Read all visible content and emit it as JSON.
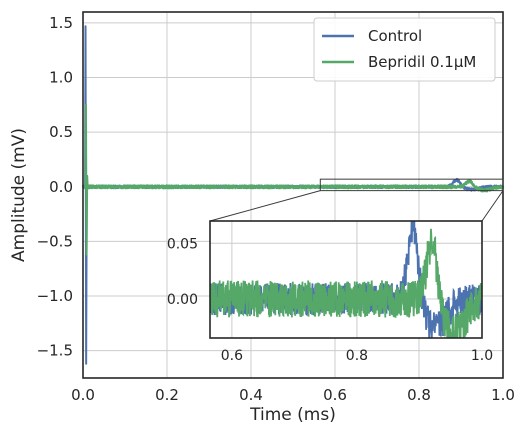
{
  "chart_data": {
    "type": "line",
    "title": "",
    "xlabel": "Time (ms)",
    "ylabel": "Amplitude (mV)",
    "xlim": [
      0.0,
      1.0
    ],
    "ylim": [
      -1.75,
      1.6
    ],
    "xticks": [
      0.0,
      0.2,
      0.4,
      0.6,
      0.8,
      1.0
    ],
    "xtick_labels": [
      "0.0",
      "0.2",
      "0.4",
      "0.6",
      "0.8",
      "1.0"
    ],
    "yticks": [
      -1.5,
      -1.0,
      -0.5,
      0.0,
      0.5,
      1.0,
      1.5
    ],
    "ytick_labels": [
      "−1.5",
      "−1.0",
      "−0.5",
      "0.0",
      "0.5",
      "1.0",
      "1.5"
    ],
    "grid": true,
    "legend_position": "top-right",
    "series": [
      {
        "name": "Control",
        "color": "#4c72b0",
        "spike": {
          "x": 0.006,
          "max": 1.47,
          "min": -1.62
        },
        "noise_amplitude": 0.012,
        "event": {
          "x": 0.89,
          "peak": 0.065,
          "trough": -0.025
        }
      },
      {
        "name": "Bepridil 0.1μM",
        "color": "#55a868",
        "spike": {
          "x": 0.007,
          "max": 0.75,
          "min": -0.62
        },
        "noise_amplitude": 0.014,
        "event": {
          "x": 0.92,
          "peak": 0.055,
          "trough": -0.03
        }
      }
    ],
    "inset": {
      "xlim": [
        0.565,
        1.0
      ],
      "ylim": [
        -0.035,
        0.07
      ],
      "xticks": [
        0.6,
        0.8,
        1.0
      ],
      "xtick_labels": [
        "0.6",
        "0.8",
        "1.0"
      ],
      "yticks": [
        0.0,
        0.05
      ],
      "ytick_labels": [
        "0.00",
        "0.05"
      ],
      "zoom_region": {
        "xlim": [
          0.565,
          1.0
        ],
        "ylim": [
          -0.035,
          0.07
        ]
      }
    }
  }
}
